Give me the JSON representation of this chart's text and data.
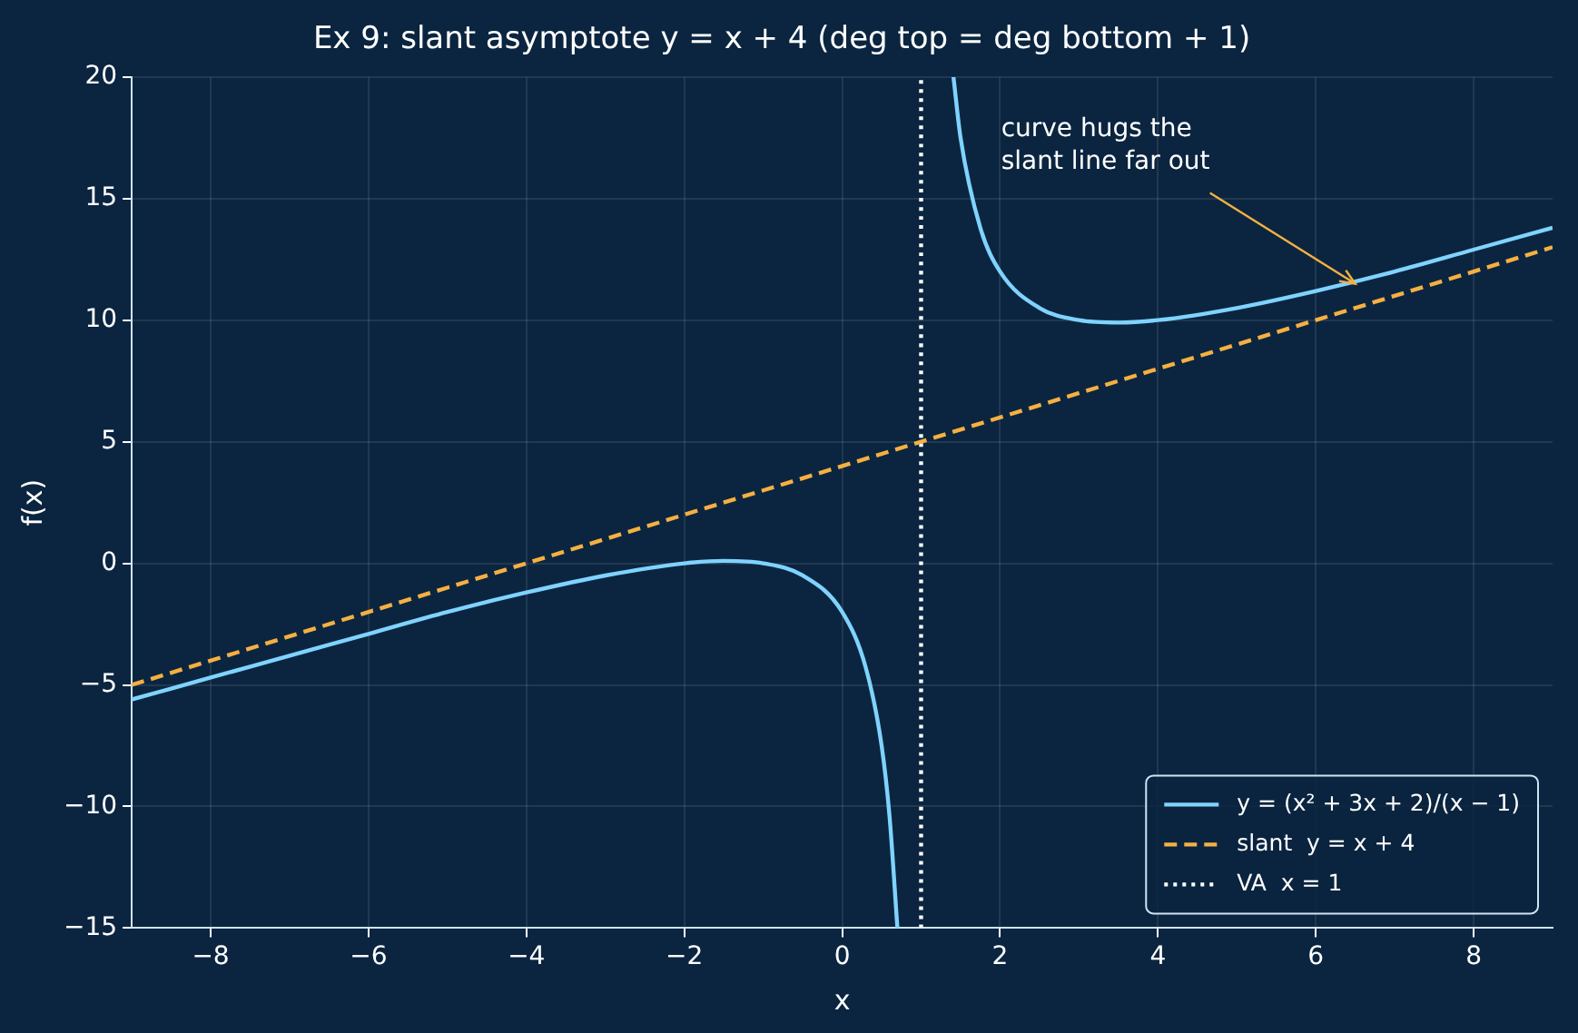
{
  "chart_data": {
    "type": "line",
    "title": "Ex 9: slant asymptote y = x + 4 (deg top = deg bottom + 1)",
    "xlabel": "x",
    "ylabel": "f(x)",
    "xlim": [
      -9,
      9
    ],
    "xticks": [
      {
        "value": -8,
        "label": "−8"
      },
      {
        "value": -6,
        "label": "−6"
      },
      {
        "value": -4,
        "label": "−4"
      },
      {
        "value": -2,
        "label": "−2"
      },
      0,
      2,
      4,
      6,
      8
    ],
    "ylim": [
      -15,
      20
    ],
    "yticks": [
      {
        "value": -15,
        "label": "−15"
      },
      {
        "value": -10,
        "label": "−10"
      },
      {
        "value": -5,
        "label": "−5"
      },
      0,
      5,
      10,
      15,
      20
    ],
    "grid": true,
    "legend": "bottom right",
    "annotations": [
      {
        "text": "curve hugs the\nslant line far out",
        "x": 6.5,
        "y": 11.5
      }
    ],
    "series": [
      {
        "name": "y = (x² + 3x + 2)/(x − 1)",
        "color": "#7fd3ff",
        "type": "line",
        "line_style": "solid",
        "x": [
          -9,
          -8,
          -7,
          -6,
          -5,
          -4,
          -3,
          -2,
          -1.5,
          -1,
          -0.5,
          0,
          0.3,
          0.5,
          0.6,
          0.7,
          1,
          1.41,
          1.5,
          1.75,
          2,
          2.5,
          3,
          3.5,
          4,
          5,
          6,
          7,
          8,
          9
        ],
        "values": [
          -5.6,
          -4.7,
          -3.8,
          -2.9,
          -2.0,
          -1.2,
          -0.5,
          0.0,
          0.1,
          0.0,
          -0.5,
          -2.0,
          -4.3,
          -7.5,
          -10.4,
          -15,
          null,
          20,
          17.5,
          13.8,
          12,
          10.5,
          10,
          9.9,
          10,
          10.5,
          11.2,
          12,
          12.9,
          13.8
        ]
      },
      {
        "name": "slant  y = x + 4",
        "color": "#f5b041",
        "type": "line",
        "line_style": "dashed",
        "x": [
          -9,
          9
        ],
        "values": [
          -5,
          13
        ]
      },
      {
        "name": "VA  x = 1",
        "color": "#ffffff",
        "type": "line",
        "line_style": "dotted",
        "x": [
          1,
          1
        ],
        "values": [
          -15,
          20
        ]
      }
    ]
  }
}
